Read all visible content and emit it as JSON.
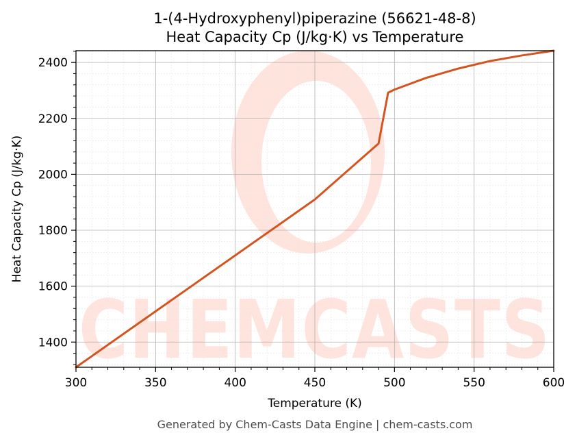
{
  "chart_data": {
    "type": "line",
    "title_line1": "1-(4-Hydroxyphenyl)piperazine (56621-48-8)",
    "title_line2": "Heat Capacity Cp (J/kg·K) vs Temperature",
    "xlabel": "Temperature (K)",
    "ylabel": "Heat Capacity Cp (J/kg·K)",
    "xlim": [
      300,
      600
    ],
    "ylim": [
      1310,
      2442
    ],
    "x_ticks": [
      300,
      350,
      400,
      450,
      500,
      550,
      600
    ],
    "y_ticks": [
      1400,
      1600,
      1800,
      2000,
      2200,
      2400
    ],
    "x_tick_labels": [
      "300",
      "350",
      "400",
      "450",
      "500",
      "550",
      "600"
    ],
    "y_tick_labels": [
      "1400",
      "1600",
      "1800",
      "2000",
      "2200",
      "2400"
    ],
    "grid": true,
    "series": [
      {
        "color": "#d4541f",
        "x": [
          300,
          350,
          400,
          450,
          490,
          496,
          500,
          520,
          540,
          560,
          580,
          600
        ],
        "y": [
          1310,
          1510,
          1710,
          1910,
          2110,
          2292,
          2303,
          2345,
          2378,
          2405,
          2425,
          2442
        ]
      }
    ]
  },
  "watermark": {
    "text": "CHEMCASTS",
    "color": "#ffe3dd"
  },
  "footer": {
    "text": "Generated by Chem-Casts Data Engine | chem-casts.com"
  }
}
